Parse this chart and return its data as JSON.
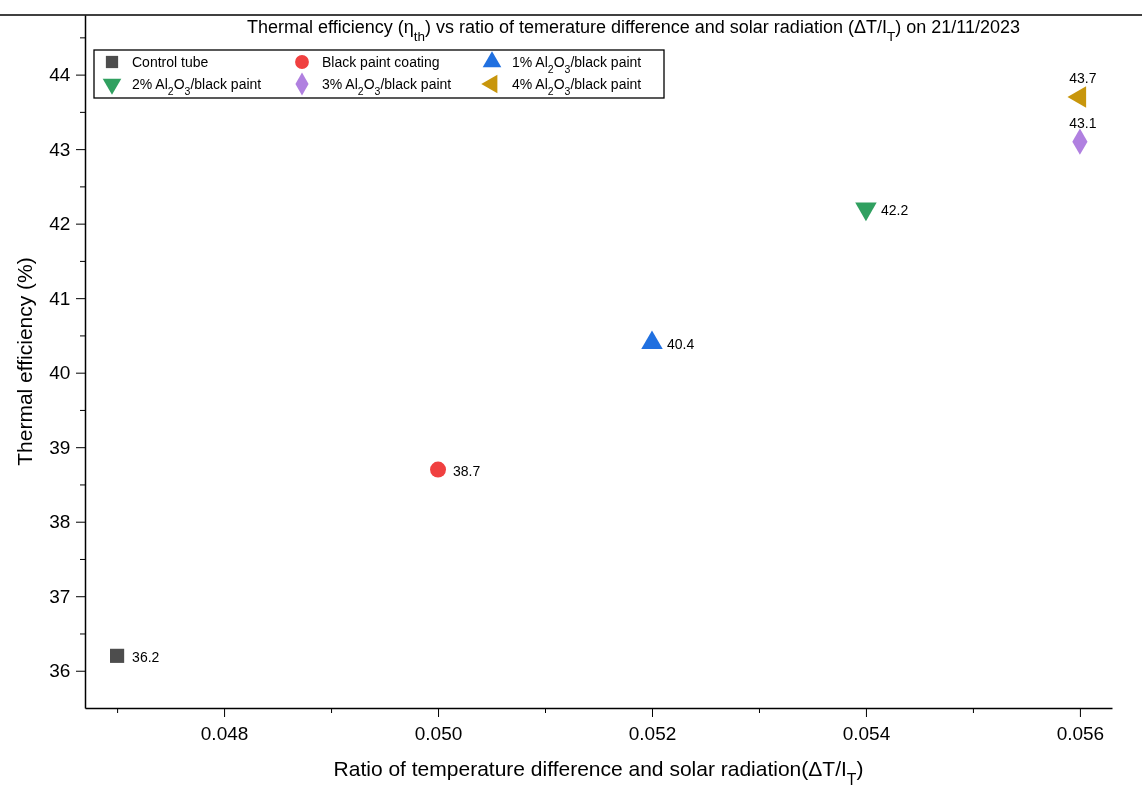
{
  "chart_data": {
    "type": "scatter",
    "title": "Thermal efficiency (η$_{th}$) vs ratio of temerature difference and solar radiation (ΔT/I$_{T}$) on 21/11/2023",
    "xlabel": "Ratio of temperature difference and solar radiation(ΔT/I$_{T}$)",
    "ylabel": "Thermal efficiency (%)",
    "xlim": [
      0.0467,
      0.0563
    ],
    "ylim": [
      35.5,
      44.8
    ],
    "xticks": [
      {
        "value": 0.047,
        "label": null
      },
      {
        "value": 0.048,
        "label": "0.048"
      },
      {
        "value": 0.049,
        "label": null
      },
      {
        "value": 0.05,
        "label": "0.050"
      },
      {
        "value": 0.051,
        "label": null
      },
      {
        "value": 0.052,
        "label": "0.052"
      },
      {
        "value": 0.053,
        "label": null
      },
      {
        "value": 0.054,
        "label": "0.054"
      },
      {
        "value": 0.055,
        "label": null
      },
      {
        "value": 0.056,
        "label": "0.056"
      }
    ],
    "yticks": [
      36,
      {
        "value": 36.5,
        "label": null
      },
      37,
      {
        "value": 37.5,
        "label": null
      },
      38,
      {
        "value": 38.5,
        "label": null
      },
      39,
      {
        "value": 39.5,
        "label": null
      },
      40,
      {
        "value": 40.5,
        "label": null
      },
      41,
      {
        "value": 41.5,
        "label": null
      },
      42,
      {
        "value": 42.5,
        "label": null
      },
      43,
      {
        "value": 43.5,
        "label": null
      },
      44,
      {
        "value": 44.5,
        "label": null
      }
    ],
    "grid": false,
    "legend": "top left",
    "data_labels": true,
    "series": [
      {
        "name": "Control tube",
        "color": "#4d4d4d",
        "marker": "square",
        "x": [
          0.047
        ],
        "values": [
          36.2
        ]
      },
      {
        "name": "Black paint coating",
        "color": "#f04040",
        "marker": "circle",
        "x": [
          0.05
        ],
        "values": [
          38.7
        ]
      },
      {
        "name": "1% Al$_{2}$O$_{3}$/black paint",
        "color": "#2070e0",
        "marker": "triangle",
        "x": [
          0.052
        ],
        "values": [
          40.4
        ]
      },
      {
        "name": "2% Al$_{2}$O$_{3}$/black paint",
        "color": "#30a060",
        "marker": "triangle-down",
        "x": [
          0.054
        ],
        "values": [
          42.2
        ]
      },
      {
        "name": "3% Al$_{2}$O$_{3}$/black paint",
        "color": "#b080e0",
        "marker": "diamond",
        "x": [
          0.056
        ],
        "values": [
          43.1
        ]
      },
      {
        "name": "4% Al$_{2}$O$_{3}$/black paint",
        "color": "#c8960c",
        "marker": "triangle-left",
        "x": [
          0.056
        ],
        "values": [
          43.7
        ]
      }
    ]
  }
}
